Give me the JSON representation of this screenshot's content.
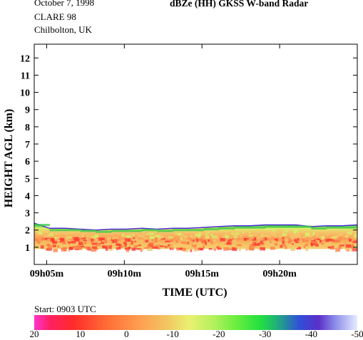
{
  "header": {
    "date": "October  7, 1998",
    "campaign": "CLARE 98",
    "location": "Chilbolton, UK",
    "product": "dBZe (HH)   GKSS  W-band Radar"
  },
  "start_label": "Start: 0903 UTC",
  "colorbar": {
    "ticks": [
      "20",
      "10",
      "0",
      "-10",
      "-20",
      "-30",
      "-40",
      "-50"
    ],
    "min": 20,
    "max": -50
  },
  "colors": {
    "cloud_top": "#4a2ccf",
    "cloud_edge": "#3ec94a",
    "cloud_body": "#f4c56a",
    "cloud_core": "#ff7a45",
    "cloud_peak": "#ff3030"
  },
  "chart_data": {
    "type": "heatmap",
    "title": "dBZe (HH)   GKSS  W-band Radar",
    "xlabel": "TIME (UTC)",
    "ylabel": "HEIGHT AGL (km)",
    "x_ticks": [
      "09h05m",
      "09h10m",
      "09h15m",
      "09h20m"
    ],
    "x_tick_minutes": [
      5,
      10,
      15,
      20
    ],
    "xlim_minutes": [
      4.2,
      25.0
    ],
    "y_ticks": [
      1,
      2,
      3,
      4,
      5,
      6,
      7,
      8,
      9,
      10,
      11,
      12
    ],
    "ylim": [
      0,
      12.8
    ],
    "colorbar_range_dBZ": [
      20,
      -50
    ],
    "layer": {
      "base_km": 0.9,
      "top_km": [
        2.4,
        2.1,
        2.1,
        2.05,
        2.0,
        2.05,
        2.05,
        2.1,
        2.05,
        2.1,
        2.1,
        2.15,
        2.2,
        2.25,
        2.25,
        2.3,
        2.3,
        2.3,
        2.2,
        2.25,
        2.25,
        2.3
      ]
    }
  }
}
